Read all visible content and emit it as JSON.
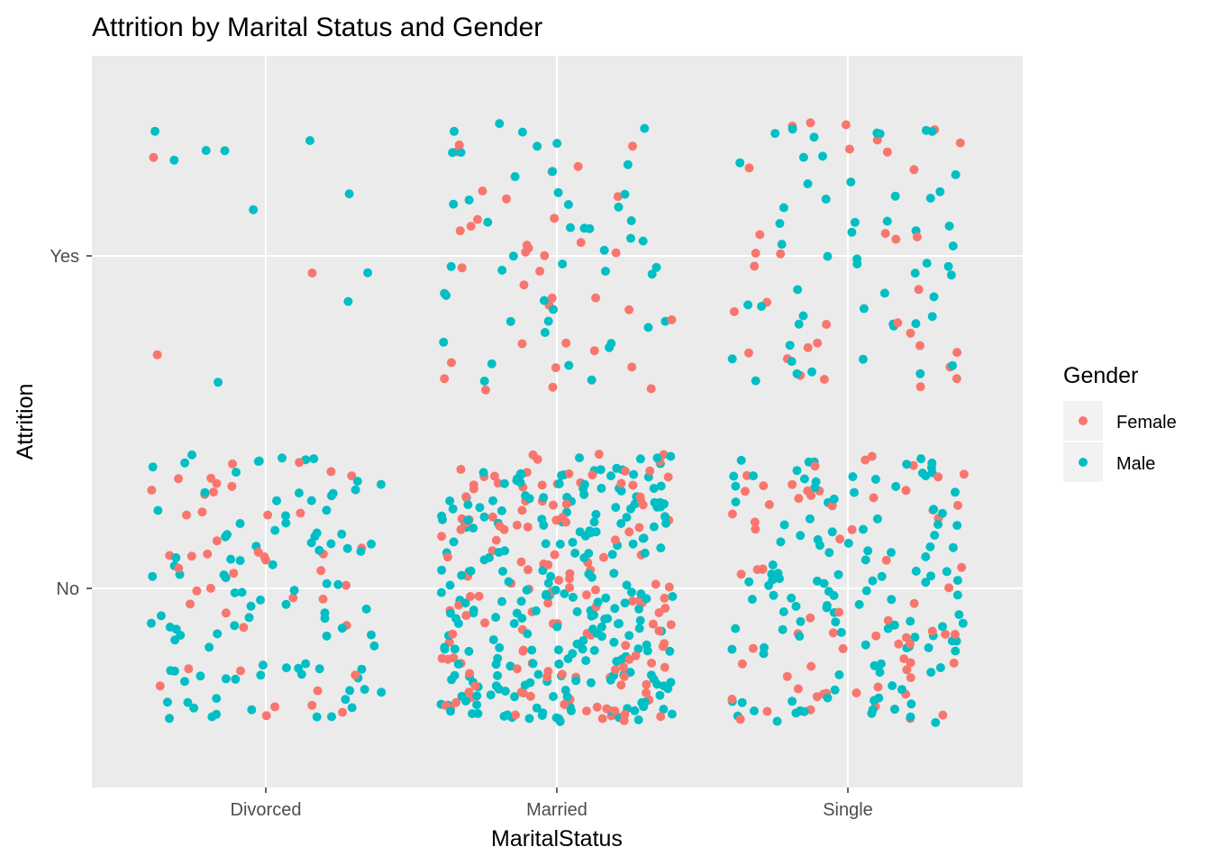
{
  "chart_data": {
    "type": "scatter",
    "title": "Attrition by Marital Status and Gender",
    "xlabel": "MaritalStatus",
    "ylabel": "Attrition",
    "categories_x": [
      "Divorced",
      "Married",
      "Single"
    ],
    "categories_y": [
      "No",
      "Yes"
    ],
    "jitter": true,
    "grid": true,
    "legend": {
      "title": "Gender",
      "position": "right",
      "entries": [
        {
          "name": "Female",
          "color": "#F8766D"
        },
        {
          "name": "Male",
          "color": "#00BFC4"
        }
      ]
    },
    "series": [
      {
        "name": "Female",
        "color": "#F8766D",
        "points": [
          {
            "x": "Divorced",
            "y": "Yes",
            "n": 3
          },
          {
            "x": "Married",
            "y": "Yes",
            "n": 36
          },
          {
            "x": "Single",
            "y": "Yes",
            "n": 34
          },
          {
            "x": "Divorced",
            "y": "No",
            "n": 45
          },
          {
            "x": "Married",
            "y": "No",
            "n": 150
          },
          {
            "x": "Single",
            "y": "No",
            "n": 70
          }
        ]
      },
      {
        "name": "Male",
        "color": "#00BFC4",
        "points": [
          {
            "x": "Divorced",
            "y": "Yes",
            "n": 10
          },
          {
            "x": "Married",
            "y": "Yes",
            "n": 48
          },
          {
            "x": "Single",
            "y": "Yes",
            "n": 54
          },
          {
            "x": "Divorced",
            "y": "No",
            "n": 100
          },
          {
            "x": "Married",
            "y": "No",
            "n": 250
          },
          {
            "x": "Single",
            "y": "No",
            "n": 130
          }
        ]
      }
    ]
  }
}
